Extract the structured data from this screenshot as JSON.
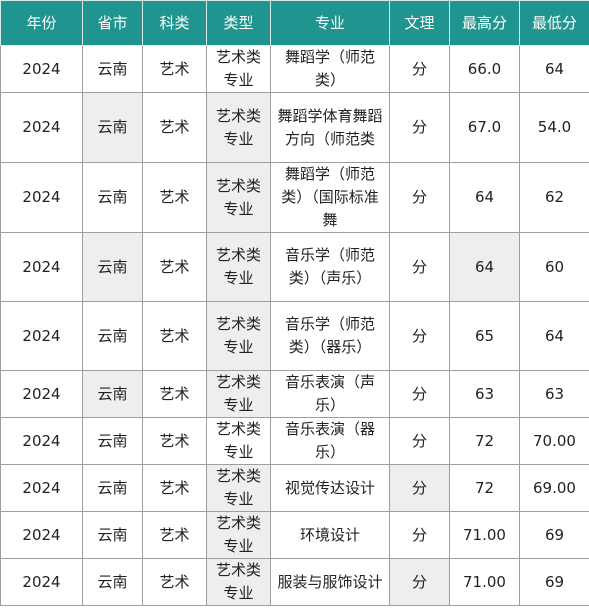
{
  "colors": {
    "header_bg": "#20948f",
    "header_text": "#ffffff",
    "shaded_cell": "#eeeeee",
    "border": "#9e9e9e"
  },
  "table": {
    "headers": [
      "年份",
      "省市",
      "科类",
      "类型",
      "专业",
      "文理",
      "最高分",
      "最低分"
    ],
    "rows": [
      [
        "2024",
        "云南",
        "艺术",
        "艺术类专业",
        "舞蹈学（师范类）",
        "分",
        "66.0",
        "64"
      ],
      [
        "2024",
        "云南",
        "艺术",
        "艺术类专业",
        "舞蹈学体育舞蹈方向（师范类",
        "分",
        "67.0",
        "54.0"
      ],
      [
        "2024",
        "云南",
        "艺术",
        "艺术类专业",
        "舞蹈学（师范类）（国际标准舞",
        "分",
        "64",
        "62"
      ],
      [
        "2024",
        "云南",
        "艺术",
        "艺术类专业",
        "音乐学（师范类）（声乐）",
        "分",
        "64",
        "60"
      ],
      [
        "2024",
        "云南",
        "艺术",
        "艺术类专业",
        "音乐学（师范类）（器乐）",
        "分",
        "65",
        "64"
      ],
      [
        "2024",
        "云南",
        "艺术",
        "艺术类专业",
        "音乐表演（声乐）",
        "分",
        "63",
        "63"
      ],
      [
        "2024",
        "云南",
        "艺术",
        "艺术类专业",
        "音乐表演（器乐）",
        "分",
        "72",
        "70.00"
      ],
      [
        "2024",
        "云南",
        "艺术",
        "艺术类专业",
        "视觉传达设计",
        "分",
        "72",
        "69.00"
      ],
      [
        "2024",
        "云南",
        "艺术",
        "艺术类专业",
        "环境设计",
        "分",
        "71.00",
        "69"
      ],
      [
        "2024",
        "云南",
        "艺术",
        "艺术类专业",
        "服装与服饰设计",
        "分",
        "71.00",
        "69"
      ]
    ]
  }
}
